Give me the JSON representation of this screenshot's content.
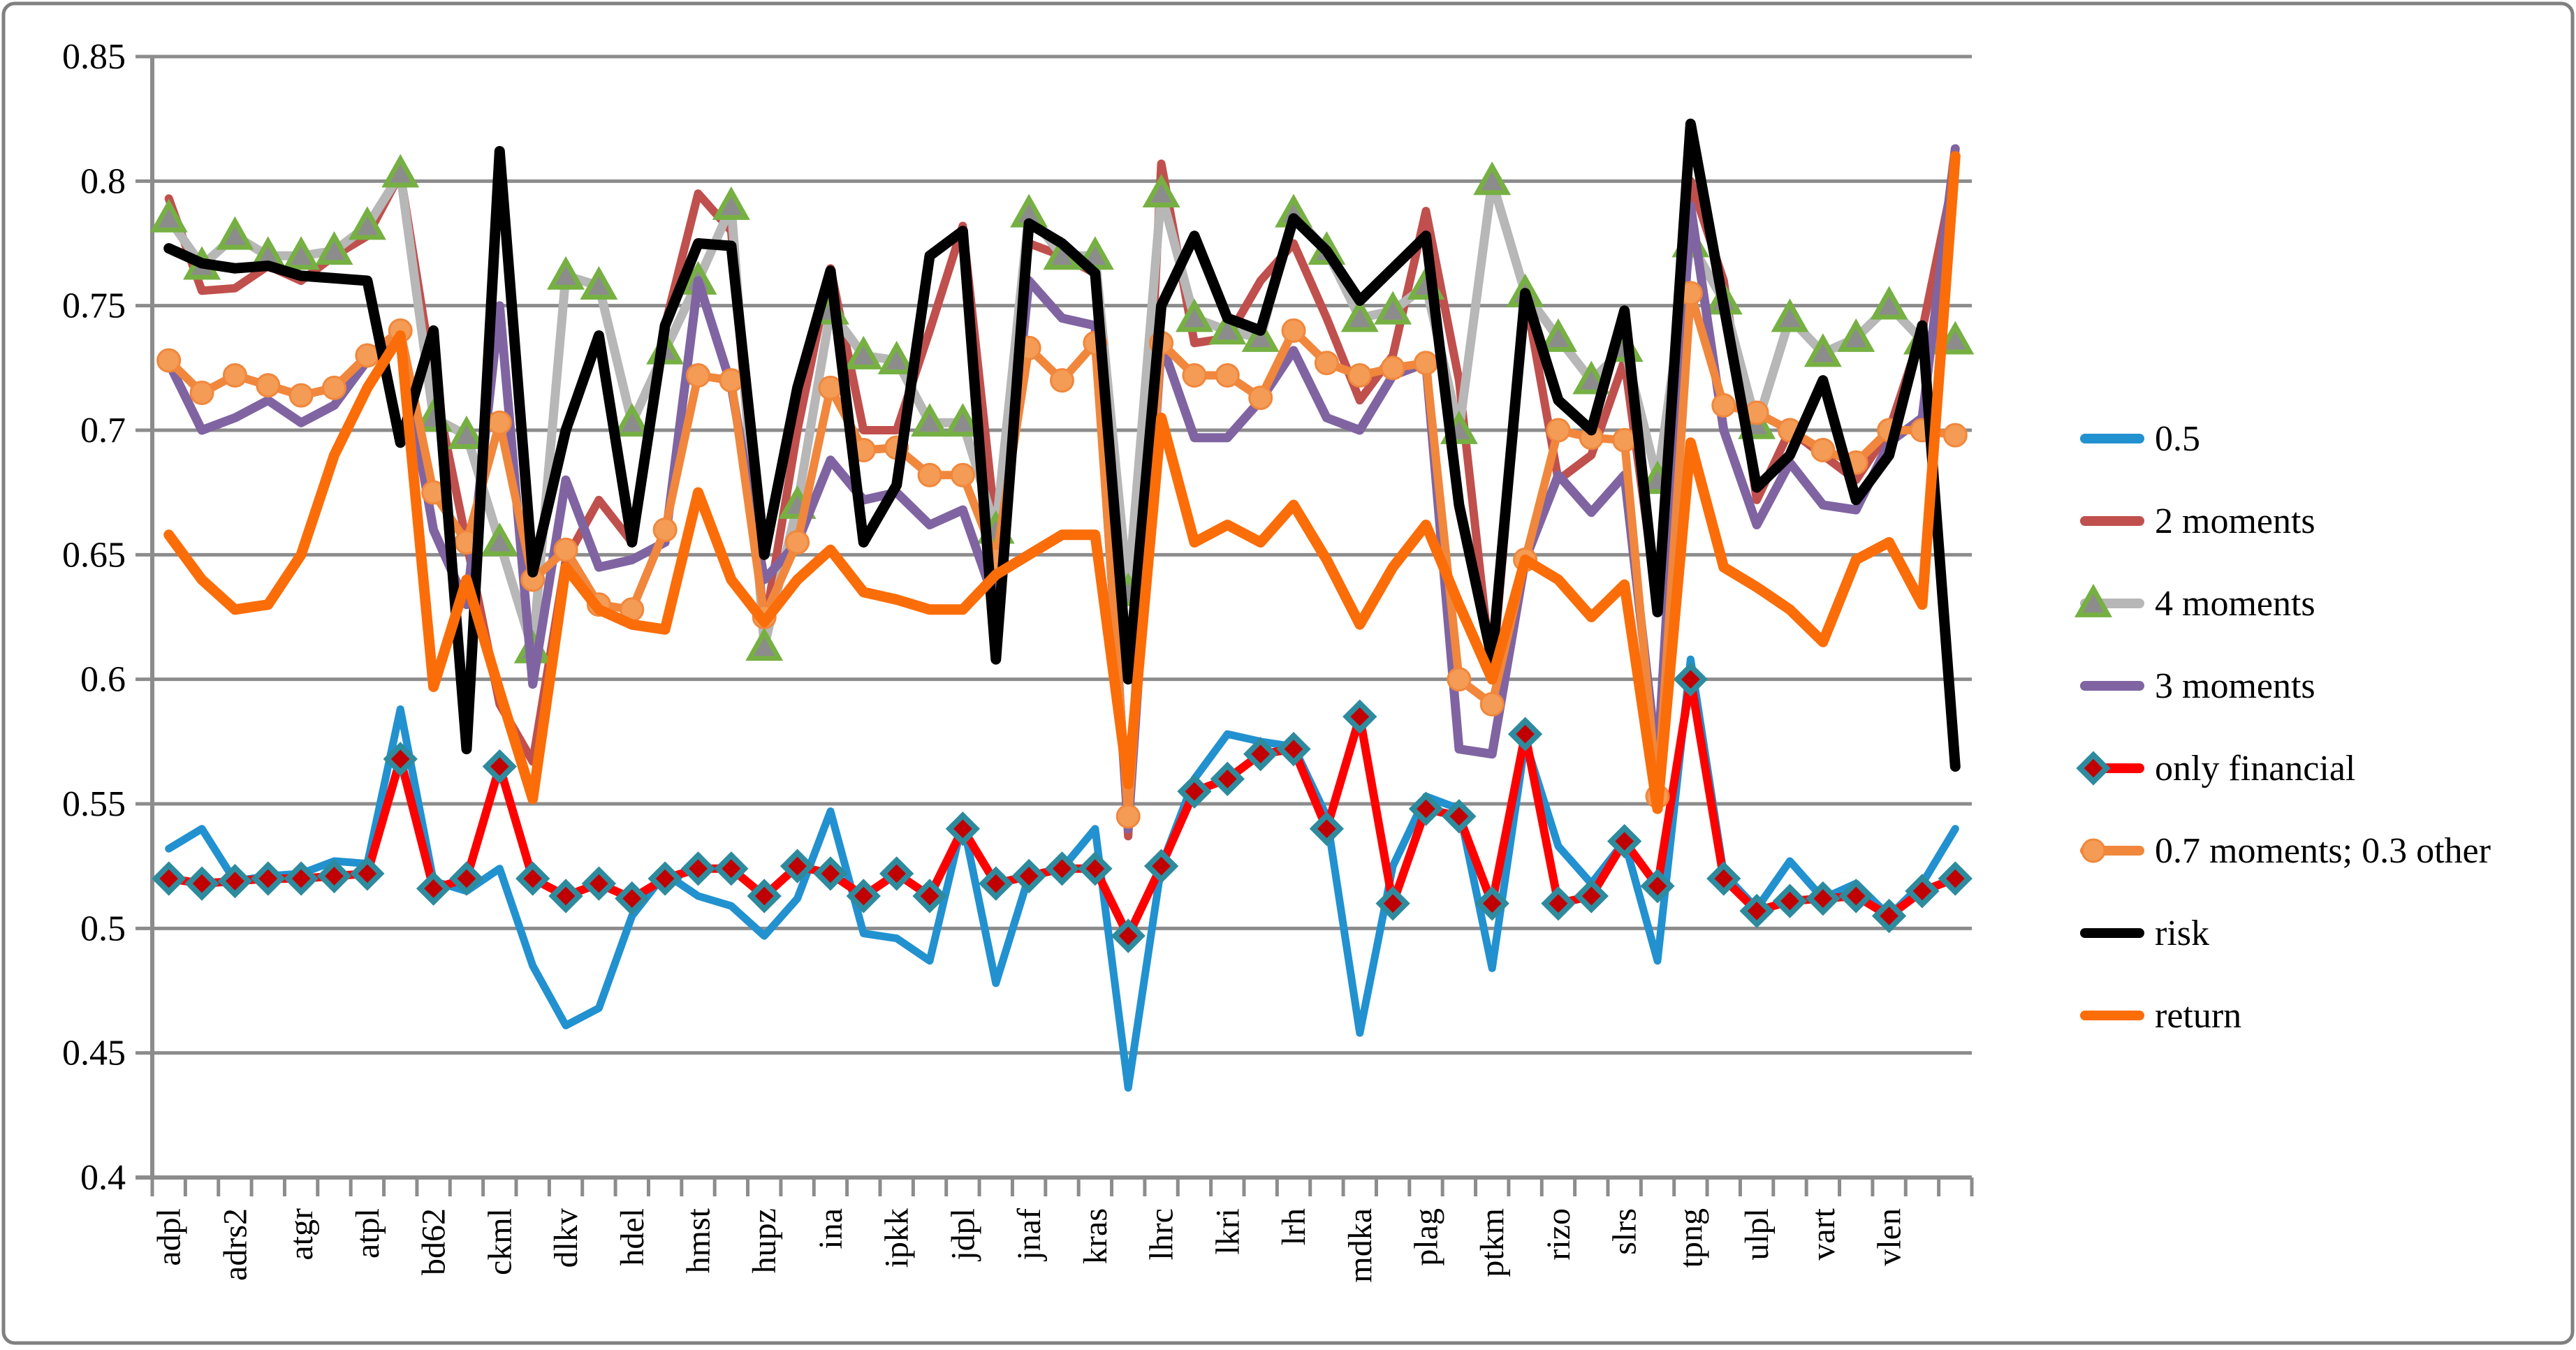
{
  "chart_data": {
    "type": "line",
    "title": "",
    "xlabel": "",
    "ylabel": "",
    "ylim": [
      0.4,
      0.85
    ],
    "ytick_step": 0.05,
    "y_tick_labels": [
      "0.85",
      "0.8",
      "0.75",
      "0.7",
      "0.65",
      "0.6",
      "0.55",
      "0.5",
      "0.45",
      "0.4"
    ],
    "x_tick_labels": [
      "adpl",
      "adrs2",
      "atgr",
      "atpl",
      "bd62",
      "ckml",
      "dlkv",
      "hdel",
      "hmst",
      "hupz",
      "ina",
      "ipkk",
      "jdpl",
      "jnaf",
      "kras",
      "lhrc",
      "lkri",
      "lrh",
      "mdka",
      "plag",
      "ptkm",
      "rizo",
      "slrs",
      "tpng",
      "ulpl",
      "vart",
      "vlen"
    ],
    "x_label_every": 2,
    "n_points": 55,
    "grid": true,
    "legend_position": "right",
    "colors": {
      "grid": "#8C8C8C",
      "axis": "#8C8C8C",
      "border": "#808080",
      "background": "#FFFFFF"
    },
    "series": [
      {
        "name": "0.5",
        "color": "#2291D0",
        "marker": "none",
        "line_width": 11,
        "values": [
          0.532,
          0.54,
          0.519,
          0.521,
          0.522,
          0.527,
          0.526,
          0.588,
          0.519,
          0.515,
          0.524,
          0.485,
          0.461,
          0.468,
          0.505,
          0.522,
          0.513,
          0.509,
          0.497,
          0.512,
          0.547,
          0.498,
          0.496,
          0.487,
          0.543,
          0.478,
          0.521,
          0.524,
          0.54,
          0.436,
          0.525,
          0.56,
          0.578,
          0.575,
          0.573,
          0.545,
          0.458,
          0.525,
          0.553,
          0.548,
          0.484,
          0.575,
          0.533,
          0.518,
          0.535,
          0.487,
          0.608,
          0.522,
          0.508,
          0.527,
          0.512,
          0.518,
          0.505,
          0.518,
          0.54
        ]
      },
      {
        "name": "2 moments",
        "color": "#C0504D",
        "marker": "none",
        "line_width": 12,
        "values": [
          0.793,
          0.756,
          0.757,
          0.766,
          0.76,
          0.77,
          0.778,
          0.803,
          0.72,
          0.655,
          0.59,
          0.567,
          0.648,
          0.672,
          0.655,
          0.742,
          0.795,
          0.78,
          0.62,
          0.7,
          0.765,
          0.7,
          0.7,
          0.74,
          0.782,
          0.66,
          0.775,
          0.77,
          0.763,
          0.537,
          0.807,
          0.735,
          0.737,
          0.76,
          0.775,
          0.745,
          0.712,
          0.73,
          0.788,
          0.72,
          0.6,
          0.755,
          0.68,
          0.69,
          0.728,
          0.63,
          0.8,
          0.76,
          0.672,
          0.7,
          0.69,
          0.68,
          0.7,
          0.74,
          0.805
        ]
      },
      {
        "name": "4 moments",
        "color": "#B7B7B7",
        "marker": "triangle",
        "marker_fill": "#8C8C8C",
        "marker_stroke": "#76B043",
        "line_width": 13,
        "values": [
          0.785,
          0.766,
          0.778,
          0.77,
          0.77,
          0.772,
          0.782,
          0.803,
          0.705,
          0.698,
          0.655,
          0.612,
          0.762,
          0.758,
          0.703,
          0.732,
          0.76,
          0.79,
          0.613,
          0.67,
          0.748,
          0.73,
          0.728,
          0.703,
          0.703,
          0.66,
          0.787,
          0.77,
          0.77,
          0.635,
          0.795,
          0.745,
          0.74,
          0.737,
          0.787,
          0.772,
          0.745,
          0.748,
          0.758,
          0.7,
          0.8,
          0.755,
          0.737,
          0.72,
          0.733,
          0.68,
          0.775,
          0.752,
          0.702,
          0.745,
          0.731,
          0.737,
          0.75,
          0.736,
          0.736
        ]
      },
      {
        "name": "3 moments",
        "color": "#8064A2",
        "marker": "none",
        "line_width": 13,
        "values": [
          0.727,
          0.7,
          0.705,
          0.712,
          0.703,
          0.71,
          0.728,
          0.735,
          0.66,
          0.63,
          0.75,
          0.598,
          0.68,
          0.645,
          0.648,
          0.655,
          0.76,
          0.718,
          0.64,
          0.655,
          0.688,
          0.672,
          0.675,
          0.662,
          0.668,
          0.63,
          0.76,
          0.745,
          0.742,
          0.54,
          0.735,
          0.697,
          0.697,
          0.712,
          0.732,
          0.705,
          0.7,
          0.722,
          0.727,
          0.572,
          0.57,
          0.648,
          0.682,
          0.667,
          0.682,
          0.565,
          0.79,
          0.7,
          0.662,
          0.687,
          0.67,
          0.668,
          0.695,
          0.705,
          0.813
        ]
      },
      {
        "name": "only financial",
        "color": "#FE0000",
        "marker": "diamond",
        "marker_fill": "#C00000",
        "marker_stroke": "#2E8B9E",
        "line_width": 12,
        "values": [
          0.52,
          0.518,
          0.519,
          0.52,
          0.52,
          0.521,
          0.522,
          0.568,
          0.516,
          0.52,
          0.565,
          0.52,
          0.513,
          0.518,
          0.512,
          0.52,
          0.524,
          0.524,
          0.513,
          0.525,
          0.522,
          0.513,
          0.522,
          0.513,
          0.54,
          0.518,
          0.521,
          0.524,
          0.524,
          0.497,
          0.525,
          0.555,
          0.56,
          0.57,
          0.572,
          0.54,
          0.585,
          0.51,
          0.548,
          0.545,
          0.51,
          0.578,
          0.51,
          0.513,
          0.535,
          0.517,
          0.6,
          0.52,
          0.507,
          0.511,
          0.512,
          0.513,
          0.505,
          0.515,
          0.52
        ]
      },
      {
        "name": "0.7 moments; 0.3 other",
        "color": "#F0873C",
        "marker": "circle",
        "marker_fill": "#F49B55",
        "marker_stroke": "#F0873C",
        "line_width": 12,
        "values": [
          0.728,
          0.715,
          0.722,
          0.718,
          0.714,
          0.717,
          0.73,
          0.74,
          0.675,
          0.655,
          0.703,
          0.64,
          0.652,
          0.63,
          0.628,
          0.66,
          0.722,
          0.72,
          0.625,
          0.655,
          0.717,
          0.692,
          0.693,
          0.682,
          0.682,
          0.648,
          0.733,
          0.72,
          0.735,
          0.545,
          0.735,
          0.722,
          0.722,
          0.713,
          0.74,
          0.727,
          0.722,
          0.725,
          0.727,
          0.6,
          0.59,
          0.648,
          0.7,
          0.697,
          0.696,
          0.553,
          0.755,
          0.71,
          0.707,
          0.7,
          0.692,
          0.687,
          0.7,
          0.7,
          0.698
        ]
      },
      {
        "name": "risk",
        "color": "#000000",
        "marker": "none",
        "line_width": 15,
        "values": [
          0.773,
          0.767,
          0.765,
          0.766,
          0.762,
          0.761,
          0.76,
          0.695,
          0.74,
          0.572,
          0.812,
          0.643,
          0.7,
          0.738,
          0.655,
          0.742,
          0.775,
          0.774,
          0.65,
          0.717,
          0.764,
          0.655,
          0.678,
          0.77,
          0.78,
          0.608,
          0.783,
          0.775,
          0.763,
          0.6,
          0.75,
          0.778,
          0.745,
          0.74,
          0.785,
          0.772,
          0.752,
          0.765,
          0.778,
          0.67,
          0.608,
          0.755,
          0.712,
          0.7,
          0.748,
          0.627,
          0.823,
          0.75,
          0.677,
          0.69,
          0.72,
          0.672,
          0.69,
          0.742,
          0.565
        ]
      },
      {
        "name": "return",
        "color": "#FB6D09",
        "marker": "none",
        "line_width": 15,
        "values": [
          0.658,
          0.64,
          0.628,
          0.63,
          0.65,
          0.69,
          0.717,
          0.738,
          0.597,
          0.64,
          0.595,
          0.552,
          0.645,
          0.628,
          0.622,
          0.62,
          0.675,
          0.64,
          0.623,
          0.64,
          0.652,
          0.635,
          0.632,
          0.628,
          0.628,
          0.642,
          0.65,
          0.658,
          0.658,
          0.558,
          0.705,
          0.655,
          0.662,
          0.655,
          0.67,
          0.648,
          0.622,
          0.645,
          0.662,
          0.63,
          0.6,
          0.648,
          0.64,
          0.625,
          0.638,
          0.548,
          0.695,
          0.645,
          0.637,
          0.628,
          0.615,
          0.648,
          0.655,
          0.63,
          0.81
        ]
      }
    ]
  }
}
